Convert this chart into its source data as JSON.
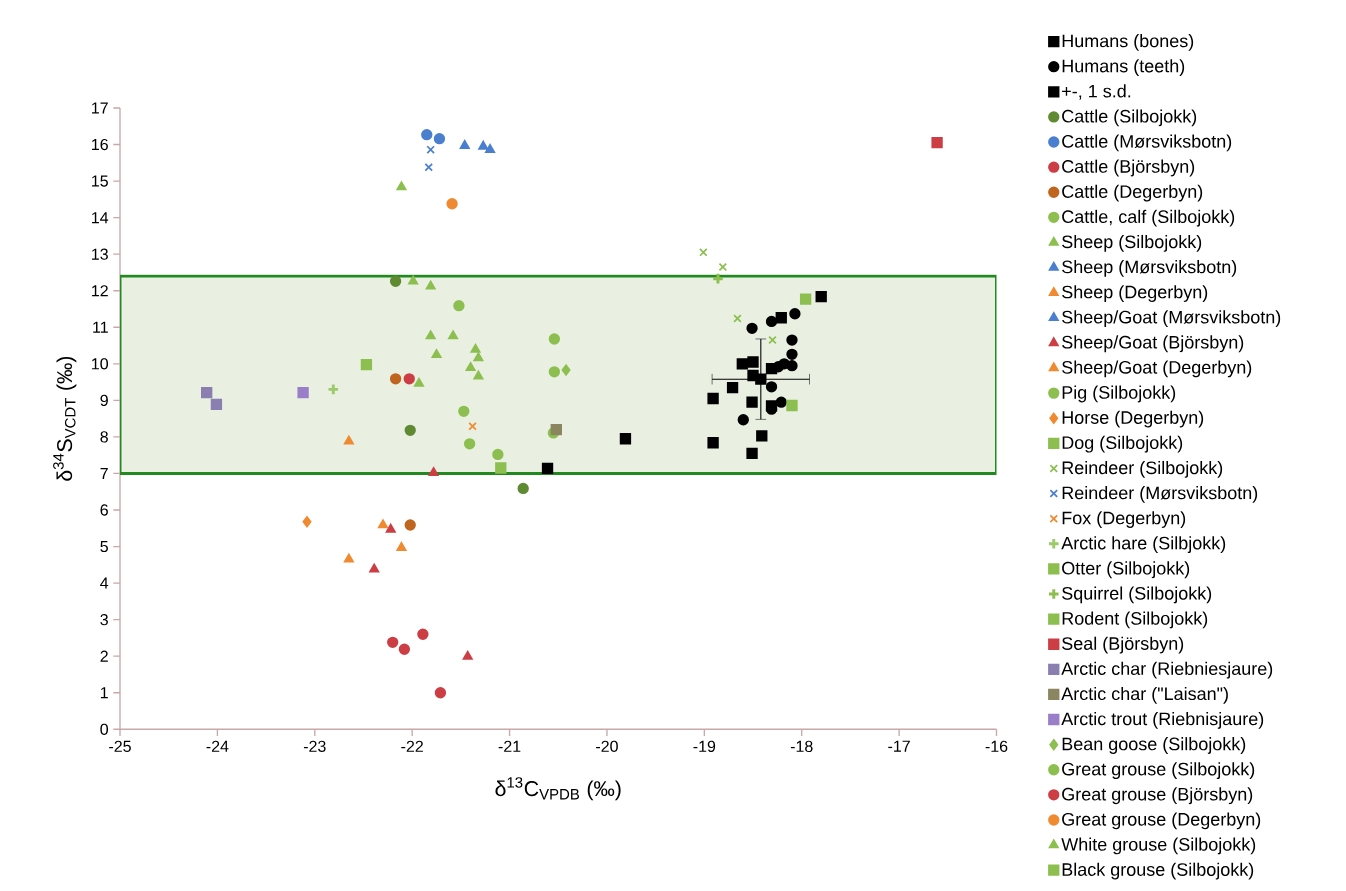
{
  "chart_data": {
    "type": "scatter",
    "xlabel": "δ$^{13}$C$_{VPDB}$ (‰)",
    "ylabel": "δ$^{34}$S$_{VCDT}$ (‰)",
    "xlim": [
      -25,
      -16
    ],
    "ylim": [
      0,
      17
    ],
    "xticks": [
      -25,
      -24,
      -23,
      -22,
      -21,
      -20,
      -19,
      -18,
      -17,
      -16
    ],
    "yticks": [
      0,
      1,
      2,
      3,
      4,
      5,
      6,
      7,
      8,
      9,
      10,
      11,
      12,
      13,
      14,
      15,
      16,
      17
    ],
    "grid": false,
    "legend": "right",
    "bands": [
      {
        "axis": "y",
        "from": 7,
        "to": 12.4,
        "color": "#e9f0e2"
      }
    ],
    "series": [
      {
        "name": "Humans (bones)",
        "color": "#000000",
        "marker": "square",
        "x": [
          -17.8,
          -18.21,
          -18.61,
          -18.5,
          -18.31,
          -18.5,
          -18.71,
          -18.91,
          -18.51,
          -18.31,
          -18.41,
          -18.91,
          -18.51,
          -19.81,
          -20.61
        ],
        "values": [
          11.84,
          11.26,
          10.0,
          10.05,
          9.87,
          9.68,
          9.35,
          9.05,
          8.95,
          8.85,
          8.03,
          7.84,
          7.55,
          7.95,
          7.14
        ]
      },
      {
        "name": "Humans (teeth)",
        "color": "#000000",
        "marker": "circle",
        "x": [
          -18.07,
          -18.31,
          -18.51,
          -18.1,
          -18.1,
          -18.1,
          -18.18,
          -18.24,
          -18.31,
          -18.21,
          -18.31,
          -18.6
        ],
        "values": [
          11.37,
          11.16,
          10.97,
          10.65,
          10.26,
          9.95,
          10.0,
          9.92,
          9.37,
          8.95,
          8.76,
          8.47
        ]
      },
      {
        "name": "+-, 1 s.d.",
        "color": "#000000",
        "marker": "square",
        "x": [
          -18.42
        ],
        "values": [
          9.58
        ],
        "errors": [
          1.1
        ],
        "xerrors": [
          0.5
        ]
      },
      {
        "name": "Cattle (Silbojokk)",
        "color": "#5f8a32",
        "marker": "circle",
        "x": [
          -22.17,
          -22.02,
          -20.86
        ],
        "values": [
          12.26,
          8.18,
          6.59
        ]
      },
      {
        "name": "Cattle (Mørsviksbotn)",
        "color": "#4a7fcf",
        "marker": "circle",
        "x": [
          -21.85,
          -21.72
        ],
        "values": [
          16.27,
          16.16
        ]
      },
      {
        "name": "Cattle (Björsbyn)",
        "color": "#cc3e44",
        "marker": "circle",
        "x": [
          -22.2,
          -22.08,
          -21.89,
          -21.71
        ],
        "values": [
          2.38,
          2.19,
          2.6,
          1.0
        ]
      },
      {
        "name": "Cattle (Degerbyn)",
        "color": "#c0651e",
        "marker": "circle",
        "x": [
          -22.17,
          -22.02
        ],
        "values": [
          9.59,
          5.59
        ]
      },
      {
        "name": "Cattle, calf (Silbojokk)",
        "color": "#8cbf4f",
        "marker": "circle",
        "x": [
          -21.47
        ],
        "values": [
          8.7
        ]
      },
      {
        "name": "Sheep (Silbojokk)",
        "color": "#8cbf4f",
        "marker": "triangle",
        "x": [
          -22.11,
          -21.99,
          -21.75,
          -21.93,
          -21.35,
          -21.4,
          -21.32
        ],
        "values": [
          14.84,
          12.26,
          10.25,
          9.46,
          10.39,
          9.89,
          9.66
        ]
      },
      {
        "name": "Sheep (Mørsviksbotn)",
        "color": "#4a7fcf",
        "marker": "triangle",
        "x": [
          -21.46
        ],
        "values": [
          15.97
        ]
      },
      {
        "name": "Sheep (Degerbyn)",
        "color": "#f08a30",
        "marker": "triangle",
        "x": [
          -22.65
        ],
        "values": [
          4.65
        ]
      },
      {
        "name": "Sheep/Goat (Mørsviksbotn)",
        "color": "#4a7fcf",
        "marker": "triangle",
        "x": [
          -21.27,
          -21.2
        ],
        "values": [
          15.95,
          15.86
        ]
      },
      {
        "name": "Sheep/Goat (Björsbyn)",
        "color": "#cc3e44",
        "marker": "triangle",
        "x": [
          -22.22,
          -22.39,
          -21.43,
          -21.78
        ],
        "values": [
          5.47,
          4.38,
          1.99,
          7.02
        ]
      },
      {
        "name": "Sheep/Goat (Degerbyn)",
        "color": "#f08a30",
        "marker": "triangle",
        "x": [
          -22.65,
          -22.3,
          -22.11
        ],
        "values": [
          7.88,
          5.59,
          4.97
        ]
      },
      {
        "name": "Pig (Silbojokk)",
        "color": "#8cbf4f",
        "marker": "circle",
        "x": [
          -21.41,
          -21.12,
          -20.55
        ],
        "values": [
          7.81,
          7.52,
          8.11
        ]
      },
      {
        "name": "Horse (Degerbyn)",
        "color": "#f08a30",
        "marker": "diamond",
        "x": [
          -23.08
        ],
        "values": [
          5.68
        ]
      },
      {
        "name": "Dog (Silbojokk)",
        "color": "#8cbf4f",
        "marker": "square",
        "x": [
          -17.96
        ],
        "values": [
          11.77
        ]
      },
      {
        "name": "Reindeer (Silbojokk)",
        "color": "#8cbf4f",
        "marker": "cross",
        "x": [
          -19.01,
          -18.81,
          -18.66,
          -18.3
        ],
        "values": [
          13.05,
          12.65,
          11.24,
          10.65
        ]
      },
      {
        "name": "Reindeer (Mørsviksbotn)",
        "color": "#4a7fcf",
        "marker": "cross",
        "x": [
          -21.81,
          -21.83
        ],
        "values": [
          15.86,
          15.38
        ]
      },
      {
        "name": "Fox (Degerbyn)",
        "color": "#f08a30",
        "marker": "cross",
        "x": [
          -21.38
        ],
        "values": [
          8.29
        ]
      },
      {
        "name": "Arctic hare (Silbjokk)",
        "color": "#9cc96a",
        "marker": "plus",
        "x": [
          -22.81
        ],
        "values": [
          9.3
        ]
      },
      {
        "name": "Otter (Silbojokk)",
        "color": "#8cbf4f",
        "marker": "square",
        "x": [
          -18.1
        ],
        "values": [
          8.86
        ]
      },
      {
        "name": "Squirrel (Silbojokk)",
        "color": "#8cbf4f",
        "marker": "plus",
        "x": [
          -18.86
        ],
        "values": [
          12.33
        ]
      },
      {
        "name": "Rodent (Silbojokk)",
        "color": "#8cbf4f",
        "marker": "square",
        "x": [
          -22.47
        ],
        "values": [
          9.98
        ]
      },
      {
        "name": "Seal (Björsbyn)",
        "color": "#cc3e44",
        "marker": "square",
        "x": [
          -16.61
        ],
        "values": [
          16.05
        ]
      },
      {
        "name": "Arctic char (Riebniesjaure)",
        "color": "#8a7fb0",
        "marker": "square",
        "x": [
          -24.11,
          -24.01
        ],
        "values": [
          9.21,
          8.89
        ]
      },
      {
        "name": "Arctic char (\"Laisan\")",
        "color": "#8b8560",
        "marker": "square",
        "x": [
          -20.52
        ],
        "values": [
          8.2
        ]
      },
      {
        "name": "Arctic trout (Riebnisjaure)",
        "color": "#9a7fc8",
        "marker": "square",
        "x": [
          -23.12
        ],
        "values": [
          9.21
        ]
      },
      {
        "name": "Bean goose (Silbojokk)",
        "color": "#8cbf4f",
        "marker": "diamond",
        "x": [
          -20.42
        ],
        "values": [
          9.83
        ]
      },
      {
        "name": "Great grouse (Silbojokk)",
        "color": "#8cbf4f",
        "marker": "circle",
        "x": [
          -21.52,
          -20.54,
          -20.54
        ],
        "values": [
          11.59,
          10.68,
          9.78
        ]
      },
      {
        "name": "Great grouse (Björsbyn)",
        "color": "#cc3e44",
        "marker": "circle",
        "x": [
          -22.03
        ],
        "values": [
          9.59
        ]
      },
      {
        "name": "Great grouse (Degerbyn)",
        "color": "#f08a30",
        "marker": "circle",
        "x": [
          -21.59
        ],
        "values": [
          14.38
        ]
      },
      {
        "name": "White grouse (Silbojokk)",
        "color": "#8cbf4f",
        "marker": "triangle",
        "x": [
          -21.81,
          -21.81,
          -21.58,
          -21.32
        ],
        "values": [
          12.12,
          10.76,
          10.76,
          10.16
        ]
      },
      {
        "name": "Black grouse (Silbojokk)",
        "color": "#8cbf4f",
        "marker": "square",
        "x": [
          -21.09
        ],
        "values": [
          7.15
        ]
      }
    ]
  }
}
